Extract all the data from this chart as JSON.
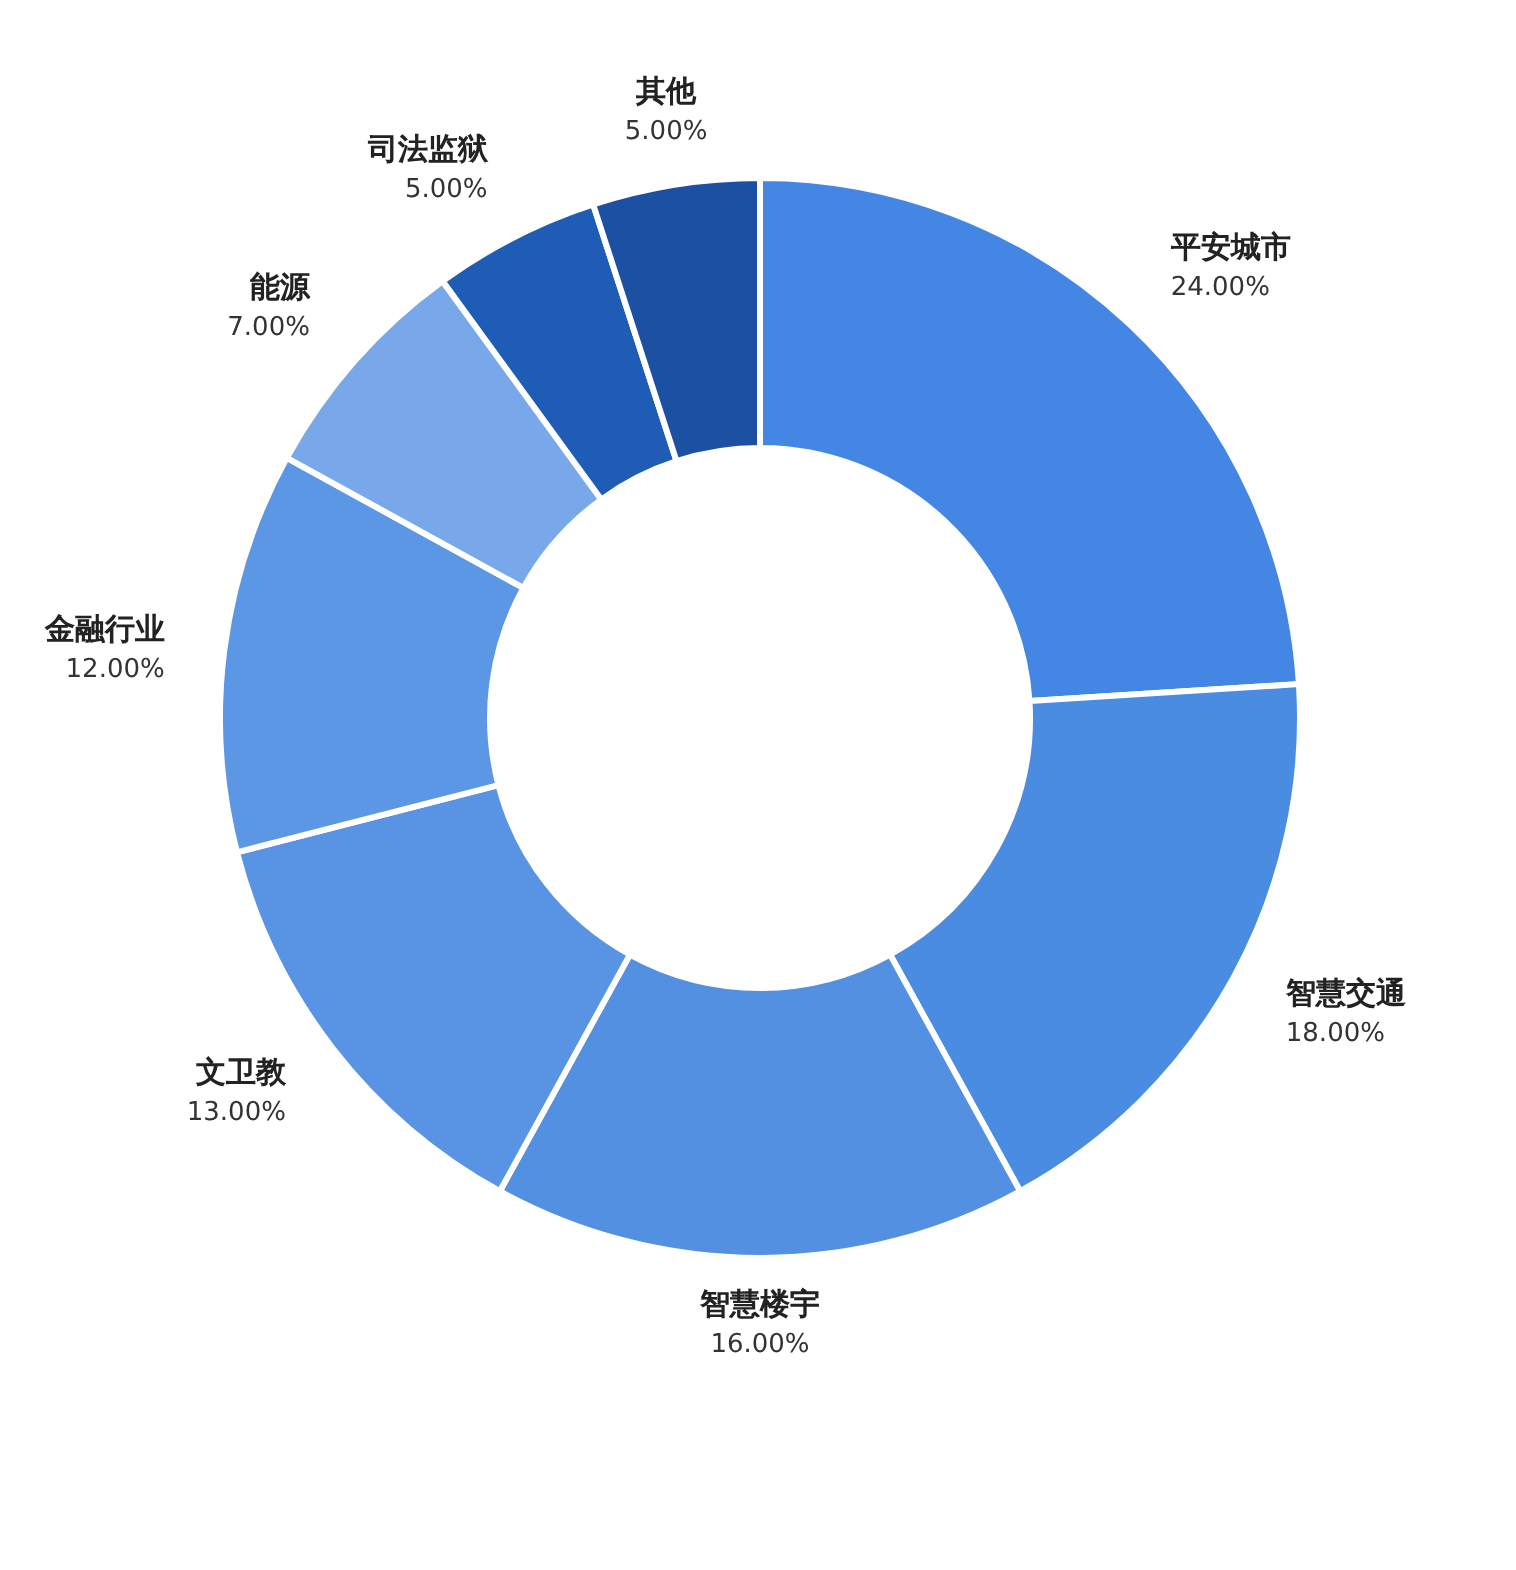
{
  "chart_data": {
    "type": "donut",
    "categories": [
      "平安城市",
      "智慧交通",
      "智慧楼宇",
      "文卫教",
      "金融行业",
      "能源",
      "司法监狱",
      "其他"
    ],
    "values": [
      24,
      18,
      16,
      13,
      12,
      7,
      5,
      5
    ],
    "value_labels": [
      "24.00%",
      "18.00%",
      "16.00%",
      "13.00%",
      "12.00%",
      "7.00%",
      "5.00%",
      "5.00%"
    ],
    "colors": [
      "#4386e3",
      "#4b8ce3",
      "#5390e2",
      "#5894e3",
      "#5b97e4",
      "#78a8ea",
      "#1f5cb5",
      "#1b50a3"
    ]
  }
}
